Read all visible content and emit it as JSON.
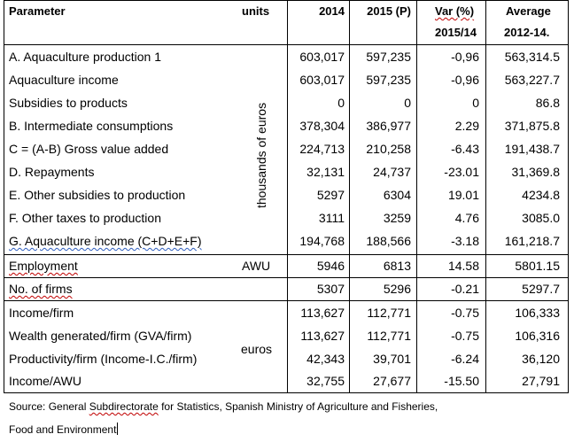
{
  "header": {
    "parameter": "Parameter",
    "units": "units",
    "y2014": "2014",
    "y2015": "2015 (P)",
    "var_l1": "Var (%)",
    "var_l2": "2015/14",
    "avg_l1": "Average",
    "avg_l2": "2012-14."
  },
  "units_labels": {
    "thousands": "thousands of euros",
    "awu": "AWU",
    "euros": "euros"
  },
  "rows": [
    {
      "label": "A. Aquaculture production 1",
      "v2014": "603,017",
      "v2015": "597,235",
      "var": "-0,96",
      "avg": "563,314.5"
    },
    {
      "label": "Aquaculture income",
      "v2014": "603,017",
      "v2015": "597,235",
      "var": "-0,96",
      "avg": "563,227.7"
    },
    {
      "label": "Subsidies to products",
      "v2014": "0",
      "v2015": "0",
      "var": "0",
      "avg": "86.8"
    },
    {
      "label": "B. Intermediate consumptions",
      "v2014": "378,304",
      "v2015": "386,977",
      "var": "2.29",
      "avg": "371,875.8"
    },
    {
      "label": "C = (A-B) Gross value added",
      "v2014": "224,713",
      "v2015": "210,258",
      "var": "-6.43",
      "avg": "191,438.7"
    },
    {
      "label": "D. Repayments",
      "v2014": "32,131",
      "v2015": "24,737",
      "var": "-23.01",
      "avg": "31,369.8"
    },
    {
      "label": "E. Other subsidies to production",
      "v2014": "5297",
      "v2015": "6304",
      "var": "19.01",
      "avg": "4234.8"
    },
    {
      "label": "F. Other taxes to production",
      "v2014": "3111",
      "v2015": "3259",
      "var": "4.76",
      "avg": "3085.0"
    },
    {
      "label": "G. Aquaculture income (C+D+E+F)",
      "v2014": "194,768",
      "v2015": "188,566",
      "var": "-3.18",
      "avg": "161,218.7"
    },
    {
      "label": "Employment",
      "v2014": "5946",
      "v2015": "6813",
      "var": "14.58",
      "avg": "5801.15"
    },
    {
      "label": "No. of firms",
      "v2014": "5307",
      "v2015": "5296",
      "var": "-0.21",
      "avg": "5297.7"
    },
    {
      "label": "Income/firm",
      "v2014": "113,627",
      "v2015": "112,771",
      "var": "-0.75",
      "avg": "106,333"
    },
    {
      "label": "Wealth generated/firm (GVA/firm)",
      "v2014": "113,627",
      "v2015": "112,771",
      "var": "-0.75",
      "avg": "106,316"
    },
    {
      "label": "Productivity/firm (Income-I.C./firm)",
      "v2014": "42,343",
      "v2015": "39,701",
      "var": "-6.24",
      "avg": "36,120"
    },
    {
      "label": "Income/AWU",
      "v2014": "32,755",
      "v2015": "27,677",
      "var": "-15.50",
      "avg": "27,791"
    }
  ],
  "source": {
    "prefix": "Source:  General  ",
    "squiggle": "Subdirectorate",
    "suffix": " for Statistics, Spanish Ministry of Agriculture and Fisheries,",
    "line2": "Food and Environment"
  }
}
